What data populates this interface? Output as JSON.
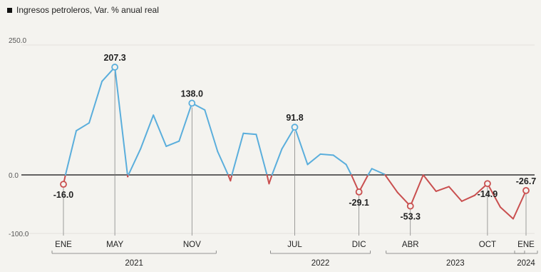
{
  "chart_data": {
    "type": "line",
    "title": "Ingresos petroleros, Var. % anual real",
    "ylim": [
      -100,
      250
    ],
    "yticks": [
      {
        "value": 250,
        "label": "250.0"
      },
      {
        "value": 0,
        "label": "0.0"
      },
      {
        "value": -100,
        "label": "-100.0"
      }
    ],
    "zero_line": true,
    "colors": {
      "positive": "#5aaedc",
      "negative": "#c94f4f",
      "zero_line": "#333333",
      "grid": "#e3e2de",
      "text": "#222222"
    },
    "x_index_range": [
      0,
      36
    ],
    "x_tick_labels": [
      {
        "index": 0,
        "label": "ENE"
      },
      {
        "index": 4,
        "label": "MAY"
      },
      {
        "index": 10,
        "label": "NOV"
      },
      {
        "index": 18,
        "label": "JUL"
      },
      {
        "index": 23,
        "label": "DIC"
      },
      {
        "index": 27,
        "label": "ABR"
      },
      {
        "index": 33,
        "label": "OCT"
      },
      {
        "index": 36,
        "label": "ENE"
      }
    ],
    "years": [
      {
        "label": "2021",
        "from": 0,
        "to": 11
      },
      {
        "label": "2022",
        "from": 17,
        "to": 23
      },
      {
        "label": "2023",
        "from": 26,
        "to": 35
      },
      {
        "label": "2024",
        "from": 36,
        "to": 36
      }
    ],
    "values": [
      -16,
      85,
      100,
      180,
      207.3,
      -3,
      50,
      115,
      55,
      65,
      138,
      125,
      45,
      -10,
      80,
      78,
      -15,
      50,
      91.8,
      20,
      40,
      38,
      20,
      -29.1,
      12,
      1,
      -30,
      -53.3,
      0,
      -28,
      -20,
      -45,
      -35,
      -14.9,
      -55,
      -75,
      -26.7
    ],
    "annotations": [
      {
        "index": 0,
        "label": "-16.0",
        "position": "below"
      },
      {
        "index": 4,
        "label": "207.3",
        "position": "above"
      },
      {
        "index": 10,
        "label": "138.0",
        "position": "above"
      },
      {
        "index": 18,
        "label": "91.8",
        "position": "above"
      },
      {
        "index": 23,
        "label": "-29.1",
        "position": "below"
      },
      {
        "index": 27,
        "label": "-53.3",
        "position": "below"
      },
      {
        "index": 33,
        "label": "-14.9",
        "position": "below"
      },
      {
        "index": 36,
        "label": "-26.7",
        "position": "above"
      }
    ]
  }
}
